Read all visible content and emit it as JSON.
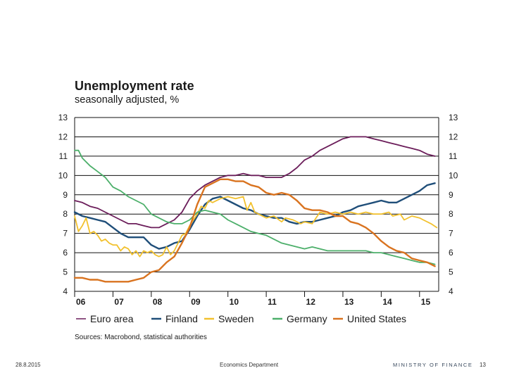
{
  "slide": {
    "date": "28.8.2015",
    "department": "Economics Department",
    "ministry": "MINISTRY OF FINANCE",
    "page_number": "13"
  },
  "chart_data": {
    "type": "line",
    "title": "Unemployment rate",
    "subtitle": "seasonally adjusted, %",
    "source": "Sources: Macrobond, statistical authorities",
    "ylim": [
      4,
      13
    ],
    "xlim": [
      2006.0,
      2015.5
    ],
    "y_ticks": [
      "4",
      "5",
      "6",
      "7",
      "8",
      "9",
      "10",
      "11",
      "12",
      "13"
    ],
    "x_ticks": [
      {
        "label": "06",
        "x": 2006.0
      },
      {
        "label": "07",
        "x": 2007.0
      },
      {
        "label": "08",
        "x": 2008.0
      },
      {
        "label": "09",
        "x": 2009.0
      },
      {
        "label": "10",
        "x": 2010.0
      },
      {
        "label": "11",
        "x": 2011.0
      },
      {
        "label": "12",
        "x": 2012.0
      },
      {
        "label": "13",
        "x": 2013.0
      },
      {
        "label": "14",
        "x": 2014.0
      },
      {
        "label": "15",
        "x": 2015.0
      }
    ],
    "grid": true,
    "series": [
      {
        "name": "Euro area",
        "color": "#6b1d5a",
        "points": [
          [
            2006.0,
            8.7
          ],
          [
            2006.2,
            8.6
          ],
          [
            2006.4,
            8.4
          ],
          [
            2006.6,
            8.3
          ],
          [
            2006.8,
            8.1
          ],
          [
            2007.0,
            7.9
          ],
          [
            2007.2,
            7.7
          ],
          [
            2007.4,
            7.5
          ],
          [
            2007.6,
            7.5
          ],
          [
            2007.8,
            7.4
          ],
          [
            2008.0,
            7.3
          ],
          [
            2008.2,
            7.3
          ],
          [
            2008.4,
            7.5
          ],
          [
            2008.6,
            7.7
          ],
          [
            2008.8,
            8.1
          ],
          [
            2009.0,
            8.8
          ],
          [
            2009.2,
            9.2
          ],
          [
            2009.4,
            9.5
          ],
          [
            2009.6,
            9.7
          ],
          [
            2009.8,
            9.9
          ],
          [
            2010.0,
            10.0
          ],
          [
            2010.2,
            10.0
          ],
          [
            2010.4,
            10.1
          ],
          [
            2010.6,
            10.0
          ],
          [
            2010.8,
            10.0
          ],
          [
            2011.0,
            9.9
          ],
          [
            2011.2,
            9.9
          ],
          [
            2011.4,
            9.9
          ],
          [
            2011.6,
            10.1
          ],
          [
            2011.8,
            10.4
          ],
          [
            2012.0,
            10.8
          ],
          [
            2012.2,
            11.0
          ],
          [
            2012.4,
            11.3
          ],
          [
            2012.6,
            11.5
          ],
          [
            2012.8,
            11.7
          ],
          [
            2013.0,
            11.9
          ],
          [
            2013.2,
            12.0
          ],
          [
            2013.4,
            12.0
          ],
          [
            2013.6,
            12.0
          ],
          [
            2013.8,
            11.9
          ],
          [
            2014.0,
            11.8
          ],
          [
            2014.2,
            11.7
          ],
          [
            2014.4,
            11.6
          ],
          [
            2014.6,
            11.5
          ],
          [
            2014.8,
            11.4
          ],
          [
            2015.0,
            11.3
          ],
          [
            2015.2,
            11.1
          ],
          [
            2015.4,
            11.0
          ]
        ]
      },
      {
        "name": "Finland",
        "color": "#1f4e79",
        "points": [
          [
            2006.0,
            8.1
          ],
          [
            2006.2,
            7.9
          ],
          [
            2006.4,
            7.8
          ],
          [
            2006.6,
            7.7
          ],
          [
            2006.8,
            7.6
          ],
          [
            2007.0,
            7.3
          ],
          [
            2007.2,
            7.0
          ],
          [
            2007.4,
            6.8
          ],
          [
            2007.6,
            6.8
          ],
          [
            2007.8,
            6.8
          ],
          [
            2008.0,
            6.4
          ],
          [
            2008.2,
            6.2
          ],
          [
            2008.4,
            6.3
          ],
          [
            2008.6,
            6.5
          ],
          [
            2008.8,
            6.6
          ],
          [
            2009.0,
            7.2
          ],
          [
            2009.2,
            7.9
          ],
          [
            2009.4,
            8.5
          ],
          [
            2009.6,
            8.8
          ],
          [
            2009.8,
            8.9
          ],
          [
            2010.0,
            8.7
          ],
          [
            2010.2,
            8.5
          ],
          [
            2010.4,
            8.3
          ],
          [
            2010.6,
            8.2
          ],
          [
            2010.8,
            8.0
          ],
          [
            2011.0,
            7.9
          ],
          [
            2011.2,
            7.8
          ],
          [
            2011.4,
            7.8
          ],
          [
            2011.6,
            7.6
          ],
          [
            2011.8,
            7.5
          ],
          [
            2012.0,
            7.6
          ],
          [
            2012.2,
            7.6
          ],
          [
            2012.4,
            7.7
          ],
          [
            2012.6,
            7.8
          ],
          [
            2012.8,
            7.9
          ],
          [
            2013.0,
            8.1
          ],
          [
            2013.2,
            8.2
          ],
          [
            2013.4,
            8.4
          ],
          [
            2013.6,
            8.5
          ],
          [
            2013.8,
            8.6
          ],
          [
            2014.0,
            8.7
          ],
          [
            2014.2,
            8.6
          ],
          [
            2014.4,
            8.6
          ],
          [
            2014.6,
            8.8
          ],
          [
            2014.8,
            9.0
          ],
          [
            2015.0,
            9.2
          ],
          [
            2015.2,
            9.5
          ],
          [
            2015.4,
            9.6
          ]
        ]
      },
      {
        "name": "Sweden",
        "color": "#f2c12e",
        "points": [
          [
            2006.0,
            7.9
          ],
          [
            2006.1,
            7.1
          ],
          [
            2006.2,
            7.4
          ],
          [
            2006.3,
            7.8
          ],
          [
            2006.4,
            7.0
          ],
          [
            2006.5,
            7.1
          ],
          [
            2006.6,
            6.9
          ],
          [
            2006.7,
            6.6
          ],
          [
            2006.8,
            6.7
          ],
          [
            2006.9,
            6.5
          ],
          [
            2007.0,
            6.4
          ],
          [
            2007.1,
            6.4
          ],
          [
            2007.2,
            6.1
          ],
          [
            2007.3,
            6.3
          ],
          [
            2007.4,
            6.2
          ],
          [
            2007.5,
            5.9
          ],
          [
            2007.6,
            6.1
          ],
          [
            2007.7,
            5.8
          ],
          [
            2007.8,
            6.1
          ],
          [
            2007.9,
            6.0
          ],
          [
            2008.0,
            6.1
          ],
          [
            2008.1,
            5.9
          ],
          [
            2008.2,
            5.8
          ],
          [
            2008.3,
            5.9
          ],
          [
            2008.4,
            6.3
          ],
          [
            2008.5,
            5.9
          ],
          [
            2008.6,
            6.1
          ],
          [
            2008.7,
            6.5
          ],
          [
            2008.8,
            6.9
          ],
          [
            2008.9,
            7.0
          ],
          [
            2009.0,
            7.4
          ],
          [
            2009.1,
            7.7
          ],
          [
            2009.2,
            8.0
          ],
          [
            2009.3,
            8.4
          ],
          [
            2009.4,
            8.3
          ],
          [
            2009.5,
            8.7
          ],
          [
            2009.6,
            8.6
          ],
          [
            2009.8,
            8.8
          ],
          [
            2010.0,
            8.9
          ],
          [
            2010.2,
            8.8
          ],
          [
            2010.4,
            8.9
          ],
          [
            2010.5,
            8.2
          ],
          [
            2010.6,
            8.6
          ],
          [
            2010.7,
            8.1
          ],
          [
            2010.8,
            8.0
          ],
          [
            2011.0,
            7.8
          ],
          [
            2011.2,
            7.9
          ],
          [
            2011.4,
            7.6
          ],
          [
            2011.5,
            7.8
          ],
          [
            2011.7,
            7.7
          ],
          [
            2011.9,
            7.5
          ],
          [
            2012.0,
            7.6
          ],
          [
            2012.2,
            7.5
          ],
          [
            2012.4,
            8.1
          ],
          [
            2012.6,
            8.0
          ],
          [
            2012.8,
            8.1
          ],
          [
            2013.0,
            8.0
          ],
          [
            2013.2,
            8.1
          ],
          [
            2013.4,
            8.0
          ],
          [
            2013.6,
            8.1
          ],
          [
            2013.8,
            8.0
          ],
          [
            2014.0,
            8.0
          ],
          [
            2014.2,
            8.1
          ],
          [
            2014.3,
            7.9
          ],
          [
            2014.5,
            8.0
          ],
          [
            2014.6,
            7.7
          ],
          [
            2014.8,
            7.9
          ],
          [
            2015.0,
            7.8
          ],
          [
            2015.1,
            7.7
          ],
          [
            2015.3,
            7.5
          ],
          [
            2015.45,
            7.3
          ]
        ]
      },
      {
        "name": "Germany",
        "color": "#4caf6a",
        "points": [
          [
            2006.0,
            11.3
          ],
          [
            2006.1,
            11.3
          ],
          [
            2006.2,
            10.9
          ],
          [
            2006.4,
            10.5
          ],
          [
            2006.6,
            10.2
          ],
          [
            2006.8,
            9.9
          ],
          [
            2007.0,
            9.4
          ],
          [
            2007.2,
            9.2
          ],
          [
            2007.4,
            8.9
          ],
          [
            2007.6,
            8.7
          ],
          [
            2007.8,
            8.5
          ],
          [
            2008.0,
            8.0
          ],
          [
            2008.2,
            7.8
          ],
          [
            2008.4,
            7.6
          ],
          [
            2008.6,
            7.5
          ],
          [
            2008.8,
            7.5
          ],
          [
            2009.0,
            7.7
          ],
          [
            2009.2,
            8.1
          ],
          [
            2009.4,
            8.2
          ],
          [
            2009.6,
            8.1
          ],
          [
            2009.8,
            8.0
          ],
          [
            2010.0,
            7.7
          ],
          [
            2010.2,
            7.5
          ],
          [
            2010.4,
            7.3
          ],
          [
            2010.6,
            7.1
          ],
          [
            2010.8,
            7.0
          ],
          [
            2011.0,
            6.9
          ],
          [
            2011.2,
            6.7
          ],
          [
            2011.4,
            6.5
          ],
          [
            2011.6,
            6.4
          ],
          [
            2011.8,
            6.3
          ],
          [
            2012.0,
            6.2
          ],
          [
            2012.2,
            6.3
          ],
          [
            2012.4,
            6.2
          ],
          [
            2012.6,
            6.1
          ],
          [
            2012.8,
            6.1
          ],
          [
            2013.0,
            6.1
          ],
          [
            2013.2,
            6.1
          ],
          [
            2013.4,
            6.1
          ],
          [
            2013.6,
            6.1
          ],
          [
            2013.8,
            6.0
          ],
          [
            2014.0,
            6.0
          ],
          [
            2014.2,
            5.9
          ],
          [
            2014.4,
            5.8
          ],
          [
            2014.6,
            5.7
          ],
          [
            2014.8,
            5.6
          ],
          [
            2015.0,
            5.5
          ],
          [
            2015.2,
            5.5
          ],
          [
            2015.4,
            5.4
          ]
        ]
      },
      {
        "name": "United States",
        "color": "#d9731f",
        "points": [
          [
            2006.0,
            4.7
          ],
          [
            2006.2,
            4.7
          ],
          [
            2006.4,
            4.6
          ],
          [
            2006.6,
            4.6
          ],
          [
            2006.8,
            4.5
          ],
          [
            2007.0,
            4.5
          ],
          [
            2007.2,
            4.5
          ],
          [
            2007.4,
            4.5
          ],
          [
            2007.6,
            4.6
          ],
          [
            2007.8,
            4.7
          ],
          [
            2008.0,
            5.0
          ],
          [
            2008.2,
            5.1
          ],
          [
            2008.4,
            5.5
          ],
          [
            2008.6,
            5.8
          ],
          [
            2008.8,
            6.5
          ],
          [
            2009.0,
            7.3
          ],
          [
            2009.2,
            8.5
          ],
          [
            2009.4,
            9.4
          ],
          [
            2009.6,
            9.6
          ],
          [
            2009.8,
            9.8
          ],
          [
            2010.0,
            9.8
          ],
          [
            2010.2,
            9.7
          ],
          [
            2010.4,
            9.7
          ],
          [
            2010.6,
            9.5
          ],
          [
            2010.8,
            9.4
          ],
          [
            2011.0,
            9.1
          ],
          [
            2011.2,
            9.0
          ],
          [
            2011.4,
            9.1
          ],
          [
            2011.6,
            9.0
          ],
          [
            2011.8,
            8.7
          ],
          [
            2012.0,
            8.3
          ],
          [
            2012.2,
            8.2
          ],
          [
            2012.4,
            8.2
          ],
          [
            2012.6,
            8.1
          ],
          [
            2012.8,
            7.9
          ],
          [
            2013.0,
            7.9
          ],
          [
            2013.2,
            7.6
          ],
          [
            2013.4,
            7.5
          ],
          [
            2013.6,
            7.3
          ],
          [
            2013.8,
            7.0
          ],
          [
            2014.0,
            6.6
          ],
          [
            2014.2,
            6.3
          ],
          [
            2014.4,
            6.1
          ],
          [
            2014.6,
            6.0
          ],
          [
            2014.8,
            5.7
          ],
          [
            2015.0,
            5.6
          ],
          [
            2015.2,
            5.5
          ],
          [
            2015.4,
            5.3
          ]
        ]
      }
    ]
  }
}
